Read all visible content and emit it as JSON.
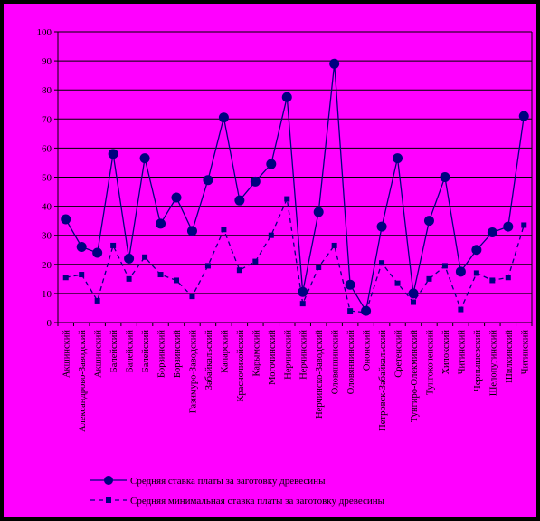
{
  "chart_data": {
    "type": "line",
    "title": "",
    "xlabel": "",
    "ylabel": "",
    "ylim": [
      0,
      100
    ],
    "yticks": [
      "0",
      "10",
      "20",
      "30",
      "40",
      "50",
      "60",
      "70",
      "80",
      "90",
      "100"
    ],
    "grid": "horizontal",
    "legend": "bottom",
    "background_color": "#ff00ff",
    "series_color": "#000080",
    "categories": [
      "Акшинский",
      "Александрово-Заводский",
      "Акшинский",
      "Балейский",
      "Балейский",
      "Балейский",
      "Борзинский",
      "Борзинский",
      "Газимуро-Заводский",
      "Забайкальский",
      "Каларский",
      "Красночикойский",
      "Карымский",
      "Могочинский",
      "Нерчинский",
      "Нерчинский",
      "Нерчинско-Заводский",
      "Оловяннинский",
      "Оловяннинский",
      "Ононский",
      "Петровск-Забайкальский",
      "Сретенский",
      "Тунгиро-Олекминский",
      "Тунгокоченский",
      "Хилокский",
      "Читинский",
      "Чернышевский",
      "Шелопугинский",
      "Шилкинский",
      "Читинский"
    ],
    "series": [
      {
        "name": "Средняя ставка платы за заготовку древесины",
        "marker": "circle",
        "line": "solid",
        "values": [
          35.5,
          26,
          24,
          58,
          22,
          56.5,
          34,
          43,
          31.5,
          49,
          70.5,
          42,
          48.5,
          54.5,
          77.5,
          10.5,
          38,
          89,
          13,
          4,
          33,
          56.5,
          10,
          35,
          50,
          17.5,
          25,
          31,
          33,
          71
        ]
      },
      {
        "name": "Средняя минимальная ставка платы за заготовку древесины",
        "marker": "square",
        "line": "dashed",
        "values": [
          15.5,
          16.5,
          7.5,
          26.5,
          15,
          22.5,
          16.5,
          14.5,
          9,
          19.5,
          32,
          18,
          21,
          30,
          42.5,
          6.5,
          19,
          26.5,
          4,
          3.5,
          20.5,
          13.5,
          7,
          15,
          19.5,
          4.5,
          17,
          14.5,
          15.5,
          33.5
        ]
      }
    ]
  }
}
